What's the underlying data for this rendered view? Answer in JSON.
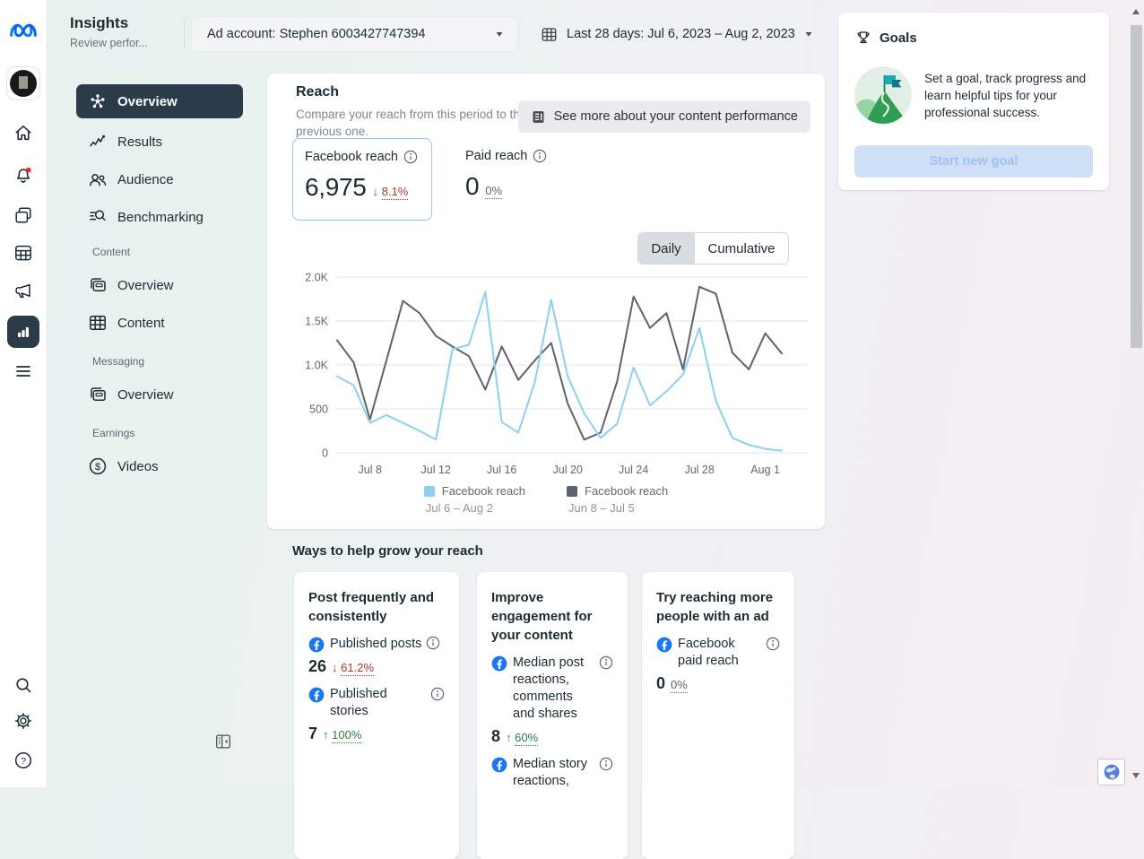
{
  "page": {
    "title": "Insights",
    "subtitle": "Review perfor..."
  },
  "topbar": {
    "ad_account": "Ad account: Stephen 6003427747394",
    "date_range": "Last 28 days: Jul 6, 2023 – Aug 2, 2023"
  },
  "sidebar": {
    "overview": "Overview",
    "results": "Results",
    "audience": "Audience",
    "benchmarking": "Benchmarking",
    "content_section": "Content",
    "content_overview": "Overview",
    "content_item": "Content",
    "messaging_section": "Messaging",
    "messaging_overview": "Overview",
    "earnings_section": "Earnings",
    "videos": "Videos"
  },
  "goals": {
    "title": "Goals",
    "description": "Set a goal, track progress and learn helpful tips for your professional success.",
    "button": "Start new goal"
  },
  "reach": {
    "title": "Reach",
    "subtitle": "Compare your reach from this period to the previous one.",
    "see_more_button": "See more about your content performance",
    "facebook_reach": {
      "label": "Facebook reach",
      "value": "6,975",
      "arrow": "↓",
      "delta": "8.1%"
    },
    "paid_reach": {
      "label": "Paid reach",
      "value": "0",
      "delta": "0%"
    },
    "toggle": {
      "daily": "Daily",
      "cumulative": "Cumulative"
    }
  },
  "chart_data": {
    "type": "line",
    "title": "Reach — Daily",
    "x_labels": [
      "Jul 8",
      "Jul 12",
      "Jul 16",
      "Jul 20",
      "Jul 24",
      "Jul 28",
      "Aug 1"
    ],
    "x_label_day_indices": [
      2,
      6,
      10,
      14,
      18,
      22,
      26
    ],
    "y_ticks": [
      "0",
      "500",
      "1.0K",
      "1.5K",
      "2.0K"
    ],
    "y_tick_values": [
      0,
      500,
      1000,
      1500,
      2000
    ],
    "ylim": [
      0,
      2000
    ],
    "grid": true,
    "legend_position": "bottom",
    "series": [
      {
        "name": "Facebook reach",
        "period": "Jul 6 – Aug 2",
        "color": "#8bd0f3",
        "values": [
          870,
          770,
          340,
          430,
          340,
          250,
          150,
          1180,
          1230,
          1830,
          350,
          230,
          800,
          1740,
          870,
          450,
          170,
          330,
          970,
          540,
          700,
          890,
          1420,
          590,
          170,
          90,
          45,
          25
        ]
      },
      {
        "name": "Facebook reach",
        "period": "Jun 8 – Jul 5",
        "color": "#5c636b",
        "values": [
          1280,
          1030,
          380,
          1055,
          1730,
          1590,
          1330,
          1210,
          1100,
          720,
          1210,
          830,
          1050,
          1250,
          560,
          150,
          230,
          810,
          1780,
          1420,
          1590,
          950,
          1890,
          1810,
          1140,
          950,
          1360,
          1130
        ]
      }
    ]
  },
  "grow": {
    "heading": "Ways to help grow your reach",
    "cards": [
      {
        "title": "Post frequently and consistently",
        "metrics": [
          {
            "label": "Published posts",
            "value": "26",
            "arrow": "↓",
            "delta": "61.2%",
            "trend": "down"
          },
          {
            "label": "Published stories",
            "value": "7",
            "arrow": "↑",
            "delta": "100%",
            "trend": "up"
          }
        ]
      },
      {
        "title": "Improve engagement for your content",
        "metrics": [
          {
            "label": "Median post reactions, comments and shares",
            "value": "8",
            "arrow": "↑",
            "delta": "60%",
            "trend": "up"
          },
          {
            "label": "Median story reactions,",
            "value": "",
            "arrow": "",
            "delta": "",
            "trend": "none"
          }
        ]
      },
      {
        "title": "Try reaching more people with an ad",
        "metrics": [
          {
            "label": "Facebook paid reach",
            "value": "0",
            "arrow": "",
            "delta": "0%",
            "trend": "neutral"
          }
        ]
      }
    ]
  },
  "colors": {
    "facebook_blue": "#1877f2",
    "positive_green": "#2d7d43",
    "negative_red": "#aa382d",
    "active_nav_bg": "#2c3b4a",
    "line_current": "#8bd0f3",
    "line_previous": "#5c636b"
  }
}
